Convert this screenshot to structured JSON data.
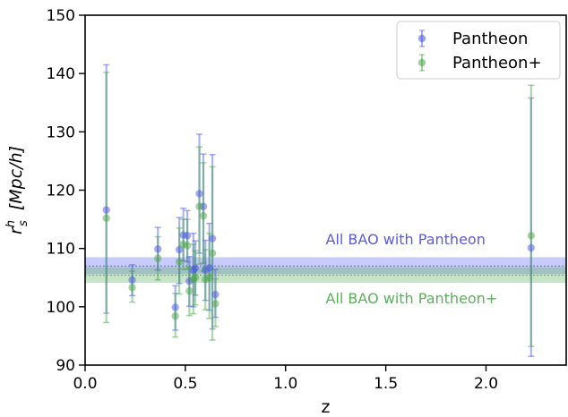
{
  "colors": {
    "pantheon": "#4a55e8",
    "pantheon_plus": "#49a648",
    "band_pantheon_annotation": "#5a5ae0",
    "band_pantheon_plus_annotation": "#5bb05a"
  },
  "chart_data": {
    "type": "scatter",
    "xlabel": "z",
    "ylabel_base": "r",
    "ylabel_sub": "s",
    "ylabel_sup": "h",
    "ylabel_units": "[Mpc/h]",
    "xlim": [
      0.0,
      2.4
    ],
    "ylim": [
      90,
      150
    ],
    "xticks": [
      0.0,
      0.5,
      1.0,
      1.5,
      2.0
    ],
    "xtick_labels": [
      "0.0",
      "0.5",
      "1.0",
      "1.5",
      "2.0"
    ],
    "yticks": [
      90,
      100,
      110,
      120,
      130,
      140,
      150
    ],
    "ytick_labels": [
      "90",
      "100",
      "110",
      "120",
      "130",
      "140",
      "150"
    ],
    "legend_position": "top-right",
    "grid": false,
    "series": [
      {
        "name": "Pantheon",
        "color_key": "pantheon",
        "points": [
          {
            "x": 0.106,
            "y": 116.6,
            "lo": 98.9,
            "hi": 141.5
          },
          {
            "x": 0.235,
            "y": 104.6,
            "lo": 101.9,
            "hi": 107.2
          },
          {
            "x": 0.363,
            "y": 109.9,
            "lo": 106.3,
            "hi": 113.6
          },
          {
            "x": 0.45,
            "y": 99.9,
            "lo": 96.0,
            "hi": 103.6
          },
          {
            "x": 0.47,
            "y": 109.8,
            "lo": 104.0,
            "hi": 115.3
          },
          {
            "x": 0.49,
            "y": 112.3,
            "lo": 107.9,
            "hi": 116.9
          },
          {
            "x": 0.51,
            "y": 112.2,
            "lo": 107.7,
            "hi": 116.5
          },
          {
            "x": 0.52,
            "y": 104.4,
            "lo": 100.1,
            "hi": 108.6
          },
          {
            "x": 0.54,
            "y": 106.3,
            "lo": 100.0,
            "hi": 112.6
          },
          {
            "x": 0.55,
            "y": 106.6,
            "lo": 102.0,
            "hi": 111.3
          },
          {
            "x": 0.57,
            "y": 119.4,
            "lo": 109.2,
            "hi": 129.6
          },
          {
            "x": 0.59,
            "y": 117.2,
            "lo": 107.5,
            "hi": 126.2
          },
          {
            "x": 0.6,
            "y": 106.3,
            "lo": 101.1,
            "hi": 111.4
          },
          {
            "x": 0.62,
            "y": 106.7,
            "lo": 99.4,
            "hi": 114.3
          },
          {
            "x": 0.635,
            "y": 111.7,
            "lo": 96.2,
            "hi": 126.1
          },
          {
            "x": 0.65,
            "y": 102.1,
            "lo": 98.2,
            "hi": 106.4
          },
          {
            "x": 2.225,
            "y": 110.1,
            "lo": 91.5,
            "hi": 135.8
          }
        ]
      },
      {
        "name": "Pantheon+",
        "color_key": "pantheon_plus",
        "points": [
          {
            "x": 0.106,
            "y": 115.2,
            "lo": 97.3,
            "hi": 140.2
          },
          {
            "x": 0.235,
            "y": 103.3,
            "lo": 100.8,
            "hi": 106.1
          },
          {
            "x": 0.363,
            "y": 108.3,
            "lo": 104.6,
            "hi": 112.0
          },
          {
            "x": 0.45,
            "y": 98.4,
            "lo": 94.8,
            "hi": 102.3
          },
          {
            "x": 0.47,
            "y": 107.7,
            "lo": 102.2,
            "hi": 113.5
          },
          {
            "x": 0.49,
            "y": 110.7,
            "lo": 106.4,
            "hi": 115.0
          },
          {
            "x": 0.51,
            "y": 110.5,
            "lo": 106.4,
            "hi": 115.0
          },
          {
            "x": 0.52,
            "y": 102.7,
            "lo": 98.5,
            "hi": 106.8
          },
          {
            "x": 0.54,
            "y": 104.7,
            "lo": 98.8,
            "hi": 110.7
          },
          {
            "x": 0.55,
            "y": 105.0,
            "lo": 100.3,
            "hi": 109.6
          },
          {
            "x": 0.57,
            "y": 117.2,
            "lo": 107.3,
            "hi": 127.4
          },
          {
            "x": 0.59,
            "y": 115.6,
            "lo": 106.1,
            "hi": 124.7
          },
          {
            "x": 0.6,
            "y": 104.7,
            "lo": 99.5,
            "hi": 109.8
          },
          {
            "x": 0.62,
            "y": 105.0,
            "lo": 98.0,
            "hi": 112.6
          },
          {
            "x": 0.635,
            "y": 109.2,
            "lo": 94.3,
            "hi": 124.0
          },
          {
            "x": 0.65,
            "y": 100.5,
            "lo": 96.6,
            "hi": 104.8
          },
          {
            "x": 2.225,
            "y": 112.2,
            "lo": 93.2,
            "hi": 138.0
          }
        ]
      }
    ],
    "bands": [
      {
        "label": "All BAO with Pantheon",
        "color_key": "pantheon",
        "center": 107.0,
        "lo": 105.6,
        "hi": 108.5
      },
      {
        "label": "All BAO with Pantheon+",
        "color_key": "pantheon_plus",
        "center": 105.4,
        "lo": 104.1,
        "hi": 106.8
      }
    ],
    "annotations": [
      {
        "text": "All BAO with Pantheon",
        "x": 1.2,
        "y": 110.7,
        "color_key": "band_pantheon_annotation"
      },
      {
        "text": "All BAO with Pantheon+",
        "x": 1.2,
        "y": 100.6,
        "color_key": "band_pantheon_plus_annotation"
      }
    ]
  }
}
